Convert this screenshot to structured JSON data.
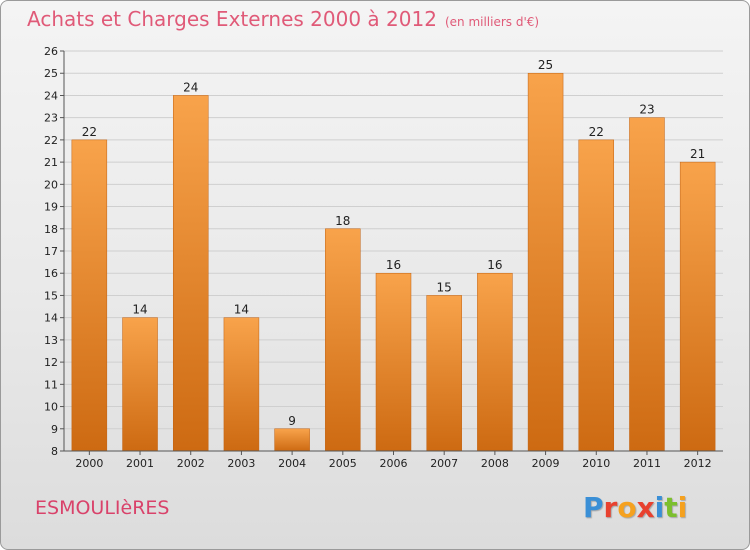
{
  "header": {
    "title": "Achats et Charges Externes 2000 à 2012",
    "unit": "(en milliers d'€)"
  },
  "footer": {
    "commune": "ESMOULIèRES",
    "logo_text": "Proxiti",
    "logo_colors": [
      "#3a8fd6",
      "#e8412f",
      "#f5a11f",
      "#e8412f",
      "#3a8fd6",
      "#7cbf2e",
      "#f5a11f"
    ]
  },
  "colors": {
    "bar_light": "#f8a34b",
    "bar_dark": "#cd6a12",
    "title": "#e05a78",
    "commune": "#d9426a"
  },
  "chart_data": {
    "type": "bar",
    "categories": [
      "2000",
      "2001",
      "2002",
      "2003",
      "2004",
      "2005",
      "2006",
      "2007",
      "2008",
      "2009",
      "2010",
      "2011",
      "2012"
    ],
    "values": [
      22,
      14,
      24,
      14,
      9,
      18,
      16,
      15,
      16,
      25,
      22,
      23,
      21
    ],
    "ylim": [
      8,
      26
    ],
    "yticks": [
      8,
      9,
      10,
      11,
      12,
      13,
      14,
      15,
      16,
      17,
      18,
      19,
      20,
      21,
      22,
      23,
      24,
      25,
      26
    ],
    "grid": true,
    "legend": "none"
  }
}
